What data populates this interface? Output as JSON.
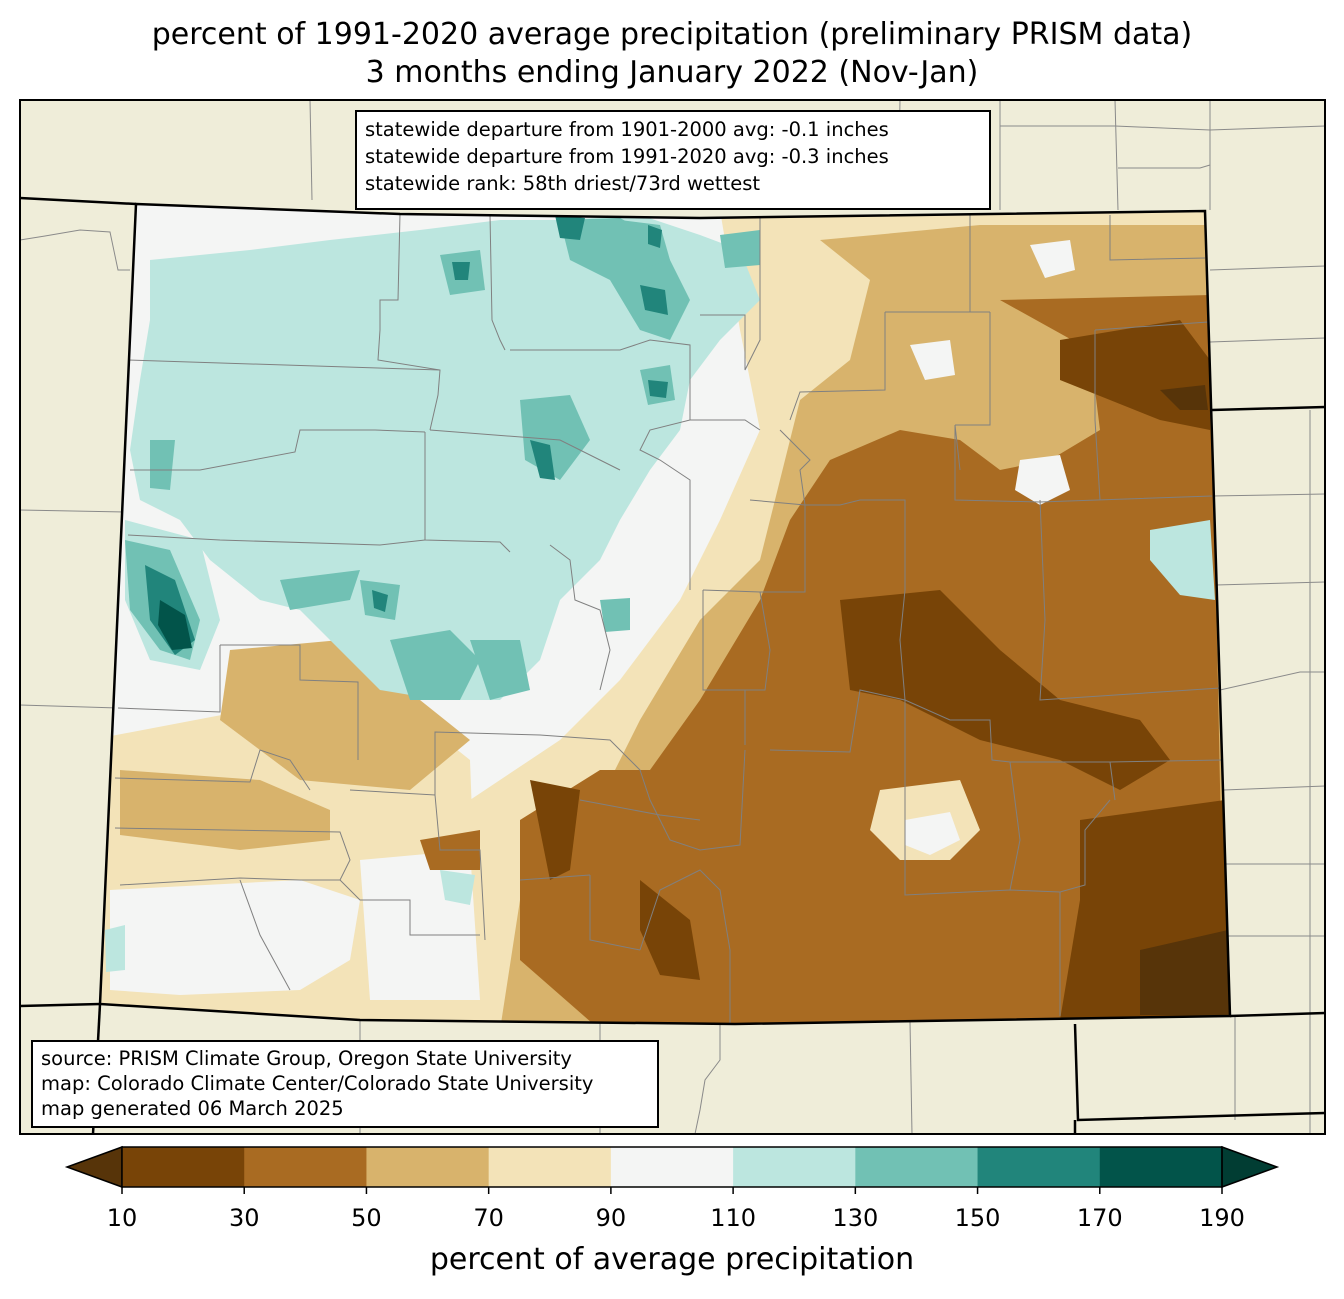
{
  "title": {
    "line1": "percent of 1991-2020 average precipitation (preliminary PRISM data)",
    "line2": "3 months ending January 2022 (Nov-Jan)"
  },
  "stats_box": {
    "line1": "statewide departure from 1901-2000 avg: -0.1 inches",
    "line2": "statewide departure from 1991-2020 avg: -0.3 inches",
    "line3": "statewide rank: 58th driest/73rd wettest"
  },
  "source_box": {
    "line1": "source: PRISM Climate Group, Oregon State University",
    "line2": "map: Colorado Climate Center/Colorado State University",
    "line3": "map generated 06 March 2025"
  },
  "colorbar": {
    "label": "percent of average precipitation",
    "ticks": [
      "10",
      "30",
      "50",
      "70",
      "90",
      "110",
      "130",
      "150",
      "170",
      "190"
    ],
    "colors": [
      "#573409",
      "#784407",
      "#a96b22",
      "#d8b36c",
      "#f3e3b8",
      "#f4f5f4",
      "#bce6df",
      "#71c1b4",
      "#21857b",
      "#02544a",
      "#013d33"
    ]
  },
  "map": {
    "background": "#efedd9",
    "border_color": "#7f7f7f",
    "state_line_color": "#000000"
  }
}
